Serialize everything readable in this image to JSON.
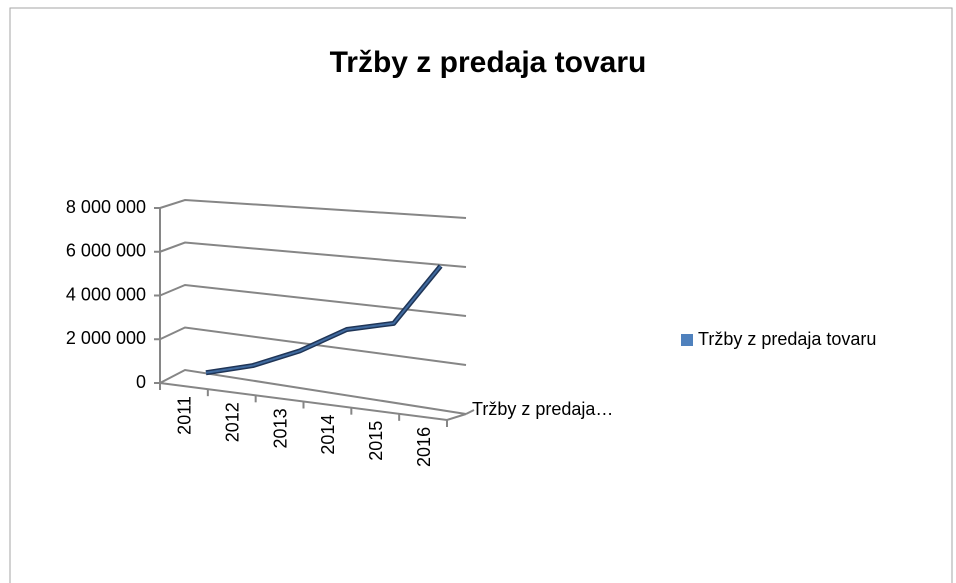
{
  "chart_data": {
    "type": "line",
    "title": "Tržby z predaja tovaru",
    "categories": [
      "2011",
      "2012",
      "2013",
      "2014",
      "2015",
      "2016"
    ],
    "series": [
      {
        "name": "Tržby z predaja tovaru",
        "color": "#4f81bd",
        "values": [
          100000,
          750000,
          1700000,
          2900000,
          3400000,
          6000000
        ]
      }
    ],
    "depth_label": "Tržby z predaja…",
    "ylim": [
      0,
      8000000
    ],
    "yticks": [
      0,
      {
        "value": 2000000,
        "label": "2 000 000"
      },
      {
        "value": 4000000,
        "label": "4 000 000"
      },
      {
        "value": 6000000,
        "label": "6 000 000"
      },
      {
        "value": 8000000,
        "label": "8 000 000"
      }
    ],
    "grid": true,
    "legend": "right"
  }
}
